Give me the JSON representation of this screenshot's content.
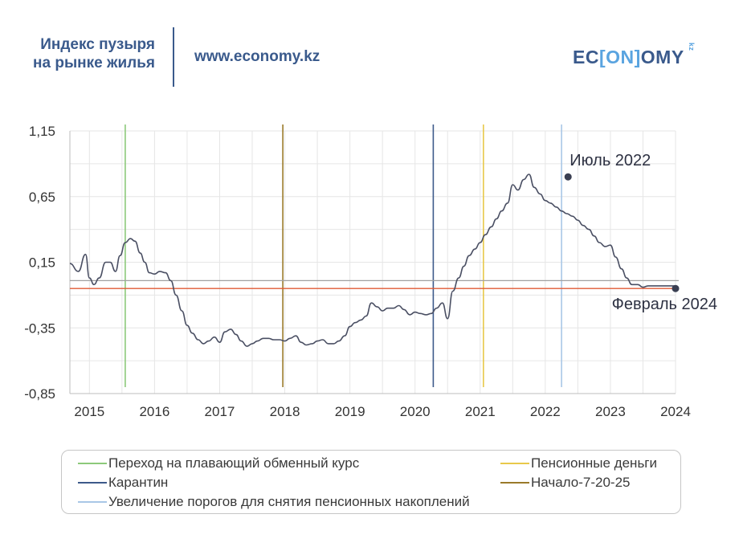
{
  "header": {
    "title_line1": "Индекс пузыря",
    "title_line2": "на рынке жилья",
    "url": "www.economy.kz",
    "logo": {
      "part1": "EC",
      "part2": "[ON]",
      "part3": "OMY",
      "suffix": "kz"
    }
  },
  "colors": {
    "brand": "#3a5a8c",
    "brand_light": "#5aa4e0",
    "series_line": "#4a4f63",
    "h_line_gray": "#a0a0a0",
    "h_line_red": "#e05a35",
    "grid": "#e6e6e6"
  },
  "chart_data": {
    "type": "line",
    "title": "",
    "xlabel": "",
    "ylabel": "",
    "xlim": [
      2014.7,
      2024.0
    ],
    "ylim": [
      -0.85,
      1.15
    ],
    "y_ticks": [
      1.15,
      0.65,
      0.15,
      -0.35,
      -0.85
    ],
    "y_tick_labels": [
      "1,15",
      "0,65",
      "0,15",
      "-0,35",
      "-0,85"
    ],
    "x_ticks": [
      2015,
      2016,
      2017,
      2018,
      2019,
      2020,
      2021,
      2022,
      2023,
      2024
    ],
    "x_tick_labels": [
      "2015",
      "2016",
      "2017",
      "2018",
      "2019",
      "2020",
      "2021",
      "2022",
      "2023",
      "2024"
    ],
    "grid": true,
    "series": [
      {
        "color": "#4a4f63",
        "x": [
          2014.7,
          2014.83,
          2014.94,
          2015.0,
          2015.07,
          2015.15,
          2015.25,
          2015.32,
          2015.4,
          2015.47,
          2015.55,
          2015.63,
          2015.7,
          2015.78,
          2015.85,
          2015.92,
          2016.0,
          2016.08,
          2016.17,
          2016.25,
          2016.33,
          2016.42,
          2016.5,
          2016.58,
          2016.67,
          2016.75,
          2016.83,
          2016.92,
          2017.0,
          2017.08,
          2017.17,
          2017.25,
          2017.33,
          2017.42,
          2017.5,
          2017.58,
          2017.67,
          2017.75,
          2017.83,
          2017.92,
          2018.0,
          2018.08,
          2018.17,
          2018.25,
          2018.33,
          2018.42,
          2018.5,
          2018.58,
          2018.67,
          2018.75,
          2018.83,
          2018.92,
          2019.0,
          2019.08,
          2019.17,
          2019.25,
          2019.33,
          2019.42,
          2019.5,
          2019.58,
          2019.67,
          2019.75,
          2019.83,
          2019.92,
          2020.0,
          2020.08,
          2020.17,
          2020.25,
          2020.33,
          2020.42,
          2020.5,
          2020.58,
          2020.67,
          2020.75,
          2020.83,
          2020.92,
          2021.0,
          2021.08,
          2021.17,
          2021.25,
          2021.33,
          2021.42,
          2021.5,
          2021.58,
          2021.67,
          2021.75,
          2021.83,
          2021.92,
          2022.0,
          2022.08,
          2022.17,
          2022.25,
          2022.33,
          2022.42,
          2022.5,
          2022.58,
          2022.67,
          2022.75,
          2022.83,
          2022.92,
          2023.0,
          2023.08,
          2023.17,
          2023.25,
          2023.33,
          2023.42,
          2023.5,
          2023.58,
          2023.67,
          2023.75,
          2023.83,
          2023.92,
          2024.0
        ],
        "y": [
          0.14,
          0.08,
          0.21,
          0.03,
          -0.02,
          0.03,
          0.15,
          0.15,
          0.08,
          0.2,
          0.3,
          0.33,
          0.31,
          0.22,
          0.15,
          0.07,
          0.06,
          0.08,
          0.07,
          0.01,
          -0.1,
          -0.22,
          -0.33,
          -0.39,
          -0.44,
          -0.47,
          -0.45,
          -0.42,
          -0.46,
          -0.38,
          -0.36,
          -0.4,
          -0.45,
          -0.49,
          -0.47,
          -0.45,
          -0.43,
          -0.43,
          -0.44,
          -0.44,
          -0.45,
          -0.43,
          -0.41,
          -0.46,
          -0.48,
          -0.47,
          -0.45,
          -0.44,
          -0.47,
          -0.47,
          -0.45,
          -0.41,
          -0.34,
          -0.31,
          -0.29,
          -0.26,
          -0.16,
          -0.19,
          -0.22,
          -0.2,
          -0.2,
          -0.18,
          -0.21,
          -0.25,
          -0.23,
          -0.24,
          -0.25,
          -0.24,
          -0.2,
          -0.16,
          -0.28,
          -0.07,
          0.03,
          0.12,
          0.2,
          0.25,
          0.3,
          0.36,
          0.42,
          0.48,
          0.54,
          0.6,
          0.74,
          0.7,
          0.78,
          0.82,
          0.72,
          0.67,
          0.62,
          0.6,
          0.57,
          0.54,
          0.52,
          0.5,
          0.47,
          0.43,
          0.4,
          0.35,
          0.3,
          0.27,
          0.28,
          0.19,
          0.1,
          0.03,
          -0.02,
          -0.02,
          -0.04,
          -0.03,
          -0.03,
          -0.03,
          -0.03,
          -0.03,
          -0.03
        ]
      }
    ],
    "horizontal_lines": [
      {
        "y": 0.01,
        "color": "#a0a0a0"
      },
      {
        "y": -0.05,
        "color": "#e05a35"
      }
    ],
    "events": [
      {
        "x": 2015.55,
        "color": "#8cc97a",
        "label": "Переход на плавающий обменный курс"
      },
      {
        "x": 2017.97,
        "color": "#9a7a2a",
        "label": "Начало-7-20-25"
      },
      {
        "x": 2020.28,
        "color": "#3d5a8a",
        "label": "Карантин"
      },
      {
        "x": 2021.05,
        "color": "#e8c84a",
        "label": "Пенсионные деньги"
      },
      {
        "x": 2022.25,
        "color": "#a9c7e6",
        "label": "Увеличение порогов для снятия пенсионных накоплений"
      }
    ],
    "annotations": [
      {
        "x": 2022.35,
        "y": 0.8,
        "text": "Июль 2022",
        "anchor": "above-right"
      },
      {
        "x": 2024.0,
        "y": -0.05,
        "text": "Февраль 2024",
        "anchor": "below-left"
      }
    ]
  },
  "legend": {
    "items": [
      {
        "label": "Переход на плавающий обменный курс",
        "color": "#8cc97a",
        "position": "left"
      },
      {
        "label": "Карантин",
        "color": "#3d5a8a",
        "position": "left"
      },
      {
        "label": "Увеличение порогов для снятия пенсионных накоплений",
        "color": "#a9c7e6",
        "position": "left"
      },
      {
        "label": "Пенсионные деньги",
        "color": "#e8c84a",
        "position": "right"
      },
      {
        "label": "Начало-7-20-25",
        "color": "#9a7a2a",
        "position": "right"
      }
    ]
  }
}
